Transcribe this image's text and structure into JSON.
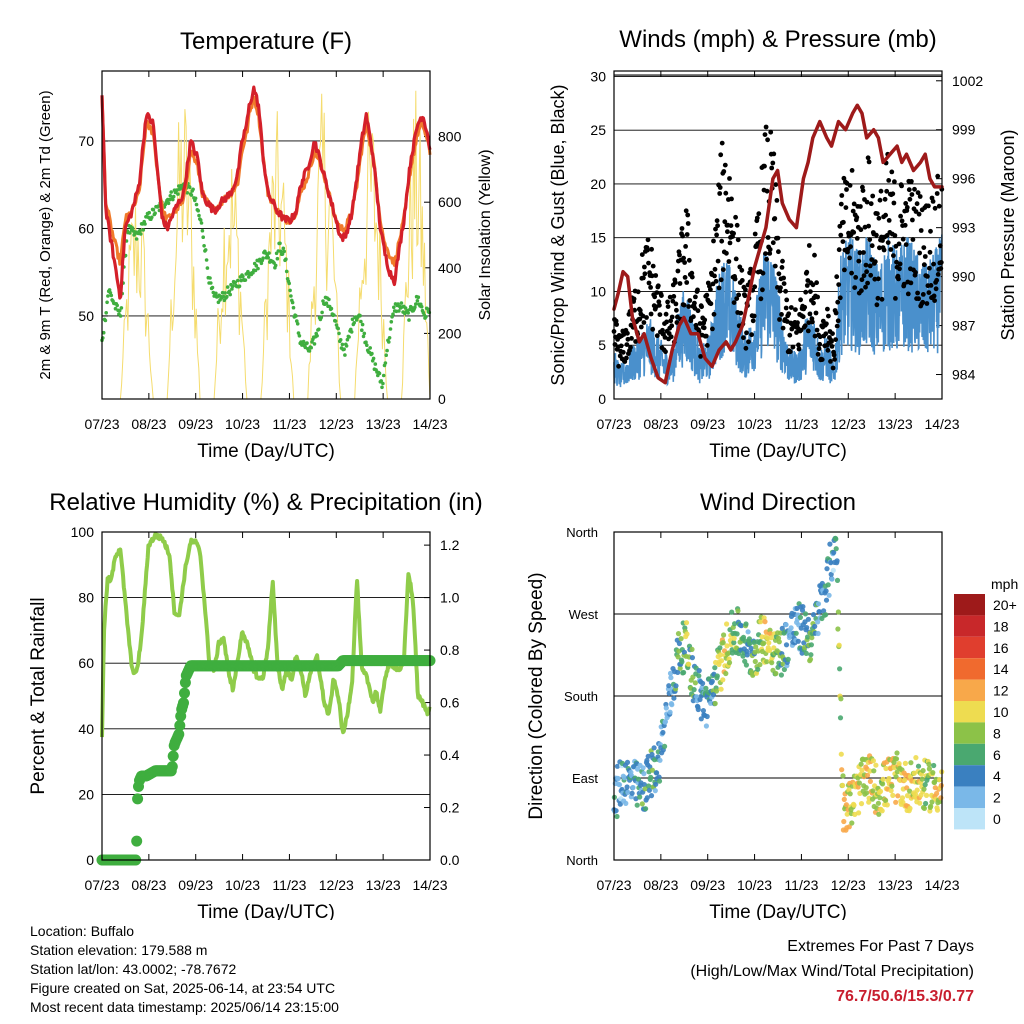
{
  "colors": {
    "temp2m": "#d4202a",
    "temp9m": "#f07a2a",
    "dewpoint": "#3fae3f",
    "solar": "#f5dc6e",
    "gust": "#000000",
    "sonic": "#4a90cc",
    "pressure": "#9e1a1a",
    "rh": "#8fcc4a",
    "precip": "#3fae3f"
  },
  "footer": {
    "location": "Location: Buffalo",
    "elevation": "Station elevation: 179.588 m",
    "latlon": "Station lat/lon: 43.0002; -78.7672",
    "created": "Figure created on Sat, 2025-06-14, at 23:54 UTC",
    "latest": "Most recent data timestamp: 2025/06/14 23:15:00",
    "extremes_title": "Extremes For Past 7 Days",
    "extremes_sub": "(High/Low/Max Wind/Total Precipitation)",
    "extremes_values": "76.7/50.6/15.3/0.77"
  },
  "chart_data": [
    {
      "id": "temperature",
      "type": "line",
      "title": "Temperature (F)",
      "xlabel": "Time (Day/UTC)",
      "ylabel": "2m & 9m T (Red, Orange) & 2m Td (Green)",
      "y2label": "Solar Insolation (Yellow)",
      "xticks": [
        "07/23",
        "08/23",
        "09/23",
        "10/23",
        "11/23",
        "12/23",
        "13/23",
        "14/23"
      ],
      "xlim": [
        7.958,
        14.958
      ],
      "ylim": [
        40.5,
        78
      ],
      "yticks": [
        50,
        60,
        70
      ],
      "y2lim": [
        0,
        1000
      ],
      "y2ticks": [
        0,
        200,
        400,
        600,
        800
      ],
      "grid": true,
      "series": [
        {
          "name": "2m T",
          "color_key": "temp2m",
          "x": [
            7.958,
            8.04,
            8.2,
            8.35,
            8.45,
            8.6,
            8.75,
            8.9,
            9.05,
            9.15,
            9.25,
            9.35,
            9.5,
            9.7,
            9.85,
            10.0,
            10.1,
            10.2,
            10.35,
            10.5,
            10.7,
            10.85,
            10.95,
            11.05,
            11.1,
            11.2,
            11.3,
            11.4,
            11.5,
            11.7,
            11.85,
            12.0,
            12.1,
            12.2,
            12.35,
            12.5,
            12.7,
            12.85,
            12.95,
            13.05,
            13.15,
            13.3,
            13.4,
            13.5,
            13.6,
            13.75,
            13.9,
            14.0,
            14.1,
            14.2,
            14.4,
            14.55,
            14.7,
            14.8,
            14.9,
            14.958
          ],
          "values": [
            75.5,
            62,
            57,
            52,
            60,
            62,
            65,
            73,
            72,
            66,
            61,
            60,
            62,
            64,
            70,
            68,
            64,
            63,
            62,
            63,
            64,
            66,
            70,
            72,
            74,
            76,
            74,
            68,
            64,
            62,
            61,
            61,
            62,
            65,
            67,
            70,
            66,
            63,
            61,
            59,
            59,
            62,
            66,
            70,
            73,
            68,
            60,
            57,
            55,
            54,
            61,
            68,
            72,
            73,
            71,
            69
          ]
        },
        {
          "name": "9m T",
          "color_key": "temp9m",
          "x": [
            7.958,
            8.04,
            8.2,
            8.35,
            8.45,
            8.6,
            8.75,
            8.9,
            9.05,
            9.15,
            9.25,
            9.35,
            9.5,
            9.7,
            9.85,
            10.0,
            10.1,
            10.2,
            10.35,
            10.5,
            10.7,
            10.85,
            10.95,
            11.05,
            11.1,
            11.2,
            11.3,
            11.4,
            11.5,
            11.7,
            11.85,
            12.0,
            12.1,
            12.2,
            12.35,
            12.5,
            12.7,
            12.85,
            12.95,
            13.05,
            13.15,
            13.3,
            13.4,
            13.5,
            13.6,
            13.75,
            13.9,
            14.0,
            14.1,
            14.2,
            14.4,
            14.55,
            14.7,
            14.8,
            14.9,
            14.958
          ],
          "values": [
            75,
            63,
            59,
            56,
            61,
            62,
            64,
            72,
            71,
            66,
            62,
            61,
            62,
            63,
            69,
            67,
            64,
            63,
            62,
            63,
            64,
            65,
            69,
            71,
            73,
            75,
            73,
            68,
            64,
            62,
            61,
            61,
            62,
            64,
            66,
            69,
            66,
            63,
            61,
            60,
            60,
            62,
            65,
            69,
            72,
            68,
            61,
            58,
            57,
            56,
            61,
            67,
            71,
            72,
            70,
            68.5
          ]
        },
        {
          "name": "2m Td",
          "color_key": "dewpoint",
          "x": [
            7.958,
            8.1,
            8.25,
            8.35,
            8.5,
            8.7,
            8.9,
            9.1,
            9.3,
            9.5,
            9.7,
            9.9,
            10.1,
            10.25,
            10.35,
            10.5,
            10.7,
            10.9,
            11.1,
            11.3,
            11.4,
            11.5,
            11.65,
            11.75,
            11.85,
            12.0,
            12.2,
            12.4,
            12.55,
            12.7,
            12.85,
            12.95,
            13.05,
            13.15,
            13.25,
            13.35,
            13.45,
            13.6,
            13.8,
            13.95,
            14.0,
            14.1,
            14.2,
            14.35,
            14.5,
            14.7,
            14.85,
            14.958
          ],
          "values": [
            47,
            53,
            51,
            50,
            60,
            59,
            61,
            62,
            63,
            64,
            65,
            64,
            60,
            54,
            52,
            52,
            53,
            54,
            55,
            56,
            57,
            57,
            56,
            58,
            57,
            52,
            47,
            46,
            48,
            52,
            51,
            49,
            47,
            46,
            48,
            50,
            50,
            47,
            44,
            42,
            45,
            48,
            51,
            51,
            50,
            52,
            50,
            51
          ]
        }
      ],
      "solar_series": {
        "name": "Solar Insolation",
        "color_key": "solar",
        "daily_peaks": [
          {
            "start": 8.35,
            "peak": 8.7,
            "end": 9.05,
            "value": 680
          },
          {
            "start": 9.35,
            "peak": 9.72,
            "end": 10.05,
            "value": 970
          },
          {
            "start": 10.35,
            "peak": 10.72,
            "end": 11.05,
            "value": 810
          },
          {
            "start": 11.35,
            "peak": 11.72,
            "end": 12.05,
            "value": 880
          },
          {
            "start": 12.35,
            "peak": 12.72,
            "end": 13.05,
            "value": 960
          },
          {
            "start": 13.35,
            "peak": 13.72,
            "end": 14.05,
            "value": 920
          },
          {
            "start": 14.35,
            "peak": 14.72,
            "end": 14.958,
            "value": 950
          }
        ]
      }
    },
    {
      "id": "winds",
      "type": "scatter",
      "title": "Winds (mph) & Pressure (mb)",
      "xlabel": "Time (Day/UTC)",
      "ylabel": "Sonic/Prop Wind & Gust (Blue, Black)",
      "y2label": "Station Pressure (Maroon)",
      "xticks": [
        "07/23",
        "08/23",
        "09/23",
        "10/23",
        "11/23",
        "12/23",
        "13/23",
        "14/23"
      ],
      "xlim": [
        7.958,
        14.958
      ],
      "ylim": [
        0,
        30.5
      ],
      "yticks": [
        0,
        5,
        10,
        15,
        20,
        25,
        30
      ],
      "y2lim": [
        982.5,
        1002.6
      ],
      "y2ticks": [
        984,
        987,
        990,
        993,
        996,
        999,
        1002
      ],
      "grid": true,
      "wind_profile": {
        "x": [
          7.958,
          8.1,
          8.3,
          8.5,
          8.7,
          8.9,
          9.05,
          9.2,
          9.35,
          9.5,
          9.65,
          9.8,
          10.0,
          10.15,
          10.3,
          10.45,
          10.6,
          10.75,
          10.9,
          11.05,
          11.2,
          11.35,
          11.5,
          11.7,
          11.9,
          12.05,
          12.2,
          12.35,
          12.5,
          12.65,
          12.8,
          13.0,
          13.2,
          13.4,
          13.6,
          13.8,
          14.0,
          14.2,
          14.4,
          14.6,
          14.8,
          14.958
        ],
        "sonic_mean": [
          3,
          2,
          3,
          4,
          5,
          4,
          3,
          3,
          6,
          7,
          5,
          3,
          4,
          7,
          9,
          8,
          6,
          4,
          5,
          7,
          10,
          9,
          6,
          3,
          3,
          5,
          6,
          3,
          4,
          2,
          9,
          10,
          9,
          10,
          8,
          10,
          9,
          10,
          9,
          8,
          9,
          10
        ],
        "gust_mean": [
          6,
          4,
          6,
          9,
          11,
          8,
          6,
          7,
          10,
          13,
          9,
          6,
          8,
          13,
          18,
          16,
          11,
          7,
          9,
          13,
          18,
          17,
          10,
          6,
          6,
          9,
          11,
          5,
          7,
          4,
          14,
          15,
          14,
          16,
          13,
          16,
          14,
          15,
          14,
          13,
          14,
          15
        ]
      },
      "pressure": {
        "x": [
          7.958,
          8.05,
          8.15,
          8.25,
          8.35,
          8.5,
          8.6,
          8.75,
          8.9,
          9.05,
          9.2,
          9.35,
          9.45,
          9.6,
          9.75,
          9.9,
          10.05,
          10.2,
          10.35,
          10.45,
          10.55,
          10.7,
          10.85,
          10.95,
          11.05,
          11.2,
          11.35,
          11.45,
          11.55,
          11.7,
          11.85,
          12.0,
          12.1,
          12.2,
          12.35,
          12.5,
          12.6,
          12.75,
          12.9,
          13.05,
          13.15,
          13.25,
          13.35,
          13.5,
          13.6,
          13.7,
          13.85,
          14.0,
          14.1,
          14.2,
          14.35,
          14.5,
          14.6,
          14.7,
          14.8,
          14.958
        ],
        "values": [
          988,
          989,
          990.3,
          990,
          987.5,
          986,
          986.5,
          985,
          983.8,
          983.5,
          985.5,
          987,
          987.5,
          986.5,
          986.5,
          985,
          984.5,
          985.5,
          986,
          985.5,
          986,
          987,
          989,
          990.5,
          991.5,
          993,
          996,
          996.5,
          994.5,
          993.5,
          993,
          996,
          997,
          998.5,
          999.5,
          998.5,
          998,
          999.5,
          999,
          1000,
          1000.5,
          1000,
          998.5,
          999,
          998.5,
          997,
          997.5,
          998,
          997,
          997.5,
          996.5,
          997,
          997.5,
          996,
          995.5,
          995.5
        ]
      }
    },
    {
      "id": "humidity",
      "type": "line",
      "title": "Relative Humidity (%) & Precipitation (in)",
      "xlabel": "Time (Day/UTC)",
      "ylabel": "Percent & Total Rainfall",
      "xticks": [
        "07/23",
        "08/23",
        "09/23",
        "10/23",
        "11/23",
        "12/23",
        "13/23",
        "14/23"
      ],
      "xlim": [
        7.958,
        14.958
      ],
      "ylim": [
        0,
        100
      ],
      "yticks": [
        0,
        20,
        40,
        60,
        80,
        100
      ],
      "y2lim": [
        0,
        1.25
      ],
      "y2ticks": [
        "0.0",
        "0.2",
        "0.4",
        "0.6",
        "0.8",
        "1.0",
        "1.2"
      ],
      "grid": true,
      "series": [
        {
          "name": "Relative Humidity",
          "color_key": "rh",
          "x": [
            7.958,
            8.0,
            8.08,
            8.15,
            8.25,
            8.35,
            8.42,
            8.5,
            8.6,
            8.7,
            8.8,
            8.95,
            9.1,
            9.25,
            9.4,
            9.5,
            9.6,
            9.75,
            9.85,
            9.95,
            10.05,
            10.15,
            10.25,
            10.35,
            10.45,
            10.55,
            10.65,
            10.75,
            10.85,
            10.95,
            11.05,
            11.2,
            11.3,
            11.4,
            11.5,
            11.6,
            11.7,
            11.8,
            11.9,
            12.0,
            12.1,
            12.2,
            12.3,
            12.4,
            12.55,
            12.7,
            12.8,
            12.9,
            13.0,
            13.1,
            13.2,
            13.3,
            13.4,
            13.5,
            13.6,
            13.75,
            13.8,
            13.9,
            14.0,
            14.1,
            14.2,
            14.3,
            14.4,
            14.5,
            14.6,
            14.7,
            14.8,
            14.9,
            14.958
          ],
          "values": [
            37,
            70,
            86,
            85,
            93,
            95,
            84,
            72,
            58,
            57,
            68,
            96,
            99,
            98,
            93,
            76,
            74,
            90,
            97,
            97,
            94,
            78,
            60,
            58,
            66,
            68,
            58,
            52,
            60,
            70,
            66,
            58,
            55,
            56,
            65,
            85,
            60,
            52,
            58,
            55,
            62,
            58,
            50,
            57,
            62,
            48,
            44,
            55,
            50,
            38,
            45,
            55,
            86,
            58,
            56,
            48,
            52,
            45,
            56,
            60,
            59,
            58,
            60,
            88,
            78,
            50,
            48,
            45,
            47
          ]
        },
        {
          "name": "Total Precipitation",
          "color_key": "precip",
          "units": "in",
          "x": [
            7.958,
            8.4,
            8.68,
            8.7,
            8.72,
            8.75,
            8.8,
            8.9,
            9.0,
            9.1,
            9.3,
            9.45,
            9.5,
            9.6,
            9.65,
            9.7,
            9.75,
            9.8,
            9.85,
            10.0,
            12.0,
            13.0,
            13.1,
            14.958
          ],
          "values": [
            0,
            0,
            0,
            0.08,
            0.25,
            0.3,
            0.32,
            0.32,
            0.33,
            0.34,
            0.34,
            0.34,
            0.44,
            0.48,
            0.57,
            0.6,
            0.7,
            0.72,
            0.74,
            0.74,
            0.74,
            0.74,
            0.76,
            0.76
          ]
        }
      ]
    },
    {
      "id": "direction",
      "type": "scatter",
      "title": "Wind Direction",
      "xlabel": "Time (Day/UTC)",
      "ylabel": "Direction (Colored By Speed)",
      "xticks": [
        "07/23",
        "08/23",
        "09/23",
        "10/23",
        "11/23",
        "12/23",
        "13/23",
        "14/23"
      ],
      "xlim": [
        7.958,
        14.958
      ],
      "ylim": [
        0,
        360
      ],
      "yticks": [
        "North",
        "East",
        "South",
        "West",
        "North"
      ],
      "grid": true,
      "direction_profile": {
        "x": [
          7.958,
          8.05,
          8.15,
          8.3,
          8.45,
          8.6,
          8.75,
          8.9,
          9.05,
          9.2,
          9.35,
          9.5,
          9.65,
          9.8,
          9.95,
          10.1,
          10.25,
          10.4,
          10.55,
          10.7,
          10.85,
          11.0,
          11.15,
          11.3,
          11.45,
          11.6,
          11.75,
          11.9,
          12.05,
          12.2,
          12.3,
          12.4,
          12.5,
          12.6,
          12.7,
          12.85,
          13.0,
          13.2,
          13.4,
          13.6,
          13.8,
          14.0,
          14.2,
          14.4,
          14.6,
          14.8,
          14.958
        ],
        "deg": [
          60,
          80,
          90,
          85,
          80,
          78,
          95,
          105,
          150,
          190,
          230,
          235,
          200,
          180,
          170,
          195,
          215,
          240,
          250,
          245,
          225,
          230,
          245,
          240,
          225,
          235,
          250,
          255,
          250,
          240,
          270,
          285,
          300,
          330,
          350,
          60,
          60,
          80,
          90,
          75,
          85,
          90,
          80,
          85,
          82,
          80,
          78
        ]
      },
      "colorbar": {
        "title": "mph",
        "labels": [
          "20+",
          "18",
          "16",
          "14",
          "12",
          "10",
          "8",
          "6",
          "4",
          "2",
          "0"
        ],
        "colors": [
          "#9e1a1a",
          "#c8282a",
          "#e03e2e",
          "#f06a2e",
          "#f8a84a",
          "#eedc50",
          "#8cc248",
          "#4aa870",
          "#3a80c0",
          "#7ab8e8",
          "#bde4f8"
        ]
      }
    }
  ]
}
